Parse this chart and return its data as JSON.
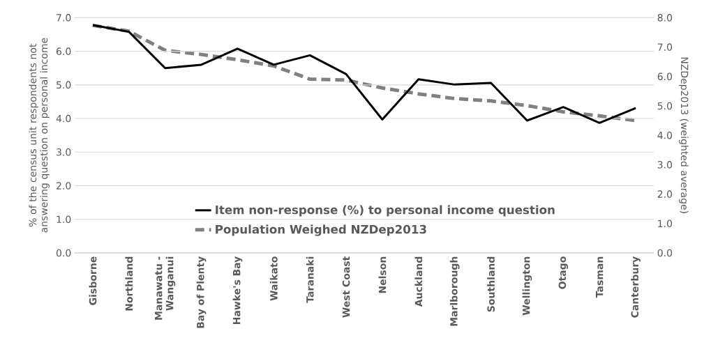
{
  "chart_data": {
    "type": "line",
    "ylabel": "% of the census unit respondents not answering question on personal income",
    "y2label": "NZDep2013 (weighted average)",
    "categories": [
      "Gisborne",
      "Northland",
      "Manawatu -Wanganui",
      "Bay of Plenty",
      "Hawke's Bay",
      "Waikato",
      "Taranaki",
      "West Coast",
      "Nelson",
      "Auckland",
      "Marlborough",
      "Southland",
      "Wellington",
      "Otago",
      "Tasman",
      "Canterbury"
    ],
    "series": [
      {
        "name": "Item non-response (%) to personal income question",
        "color": "#000000",
        "line_style": "solid",
        "values": [
          6.78,
          6.58,
          5.5,
          5.6,
          6.08,
          5.6,
          5.88,
          5.32,
          3.97,
          5.17,
          5.01,
          5.06,
          3.94,
          4.34,
          3.87,
          4.31
        ]
      },
      {
        "name": "Population Weighed NZDep2013",
        "color": "#808080",
        "line_style": "dashed",
        "axis": "y2",
        "values": [
          7.74,
          7.54,
          6.89,
          6.75,
          6.57,
          6.36,
          5.91,
          5.88,
          5.61,
          5.41,
          5.25,
          5.17,
          5.01,
          4.8,
          4.66,
          4.5
        ]
      }
    ],
    "ylim": [
      0,
      7
    ],
    "yticks": [
      {
        "value": 0,
        "label": "0.0"
      },
      {
        "value": 1,
        "label": "1.0"
      },
      {
        "value": 2,
        "label": "2.0"
      },
      {
        "value": 3,
        "label": "3.0"
      },
      {
        "value": 4,
        "label": "4.0"
      },
      {
        "value": 5,
        "label": "5.0"
      },
      {
        "value": 6,
        "label": "6.0"
      },
      {
        "value": 7,
        "label": "7.0"
      }
    ],
    "y2lim": [
      0,
      8
    ],
    "y2ticks": [
      {
        "value": 0,
        "label": "0.0"
      },
      {
        "value": 1,
        "label": "1.0"
      },
      {
        "value": 2,
        "label": "2.0"
      },
      {
        "value": 3,
        "label": "3.0"
      },
      {
        "value": 4,
        "label": "4.0"
      },
      {
        "value": 5,
        "label": "5.0"
      },
      {
        "value": 6,
        "label": "6.0"
      },
      {
        "value": 7,
        "label": "7.0"
      },
      {
        "value": 8,
        "label": "8.0"
      }
    ],
    "grid": "y",
    "legend": "bottom left",
    "marker": "none"
  }
}
